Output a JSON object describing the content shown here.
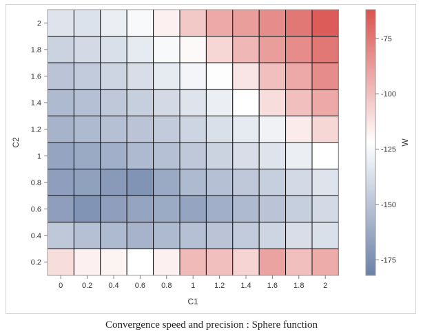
{
  "chart_data": {
    "type": "heatmap",
    "title": "",
    "xlabel": "C1",
    "ylabel": "C2",
    "x": [
      "0",
      "0.2",
      "0.4",
      "0.6",
      "0.8",
      "1",
      "1.2",
      "1.4",
      "1.6",
      "1.8",
      "2"
    ],
    "y": [
      "2",
      "1.8",
      "1.6",
      "1.4",
      "1.2",
      "1",
      "0.8",
      "0.6",
      "0.4",
      "0.2"
    ],
    "values": [
      [
        -135,
        -136,
        -130,
        -125,
        -117,
        -103,
        -92,
        -88,
        -82,
        -75,
        -65
      ],
      [
        -143,
        -140,
        -137,
        -132,
        -125,
        -120,
        -108,
        -97,
        -88,
        -82,
        -75
      ],
      [
        -150,
        -147,
        -142,
        -138,
        -132,
        -127,
        -123,
        -113,
        -100,
        -92,
        -82
      ],
      [
        -155,
        -152,
        -148,
        -145,
        -140,
        -135,
        -130,
        -122,
        -110,
        -100,
        -92
      ],
      [
        -158,
        -155,
        -152,
        -150,
        -147,
        -142,
        -137,
        -132,
        -128,
        -115,
        -108
      ],
      [
        -165,
        -163,
        -160,
        -155,
        -152,
        -148,
        -143,
        -138,
        -135,
        -130,
        -122
      ],
      [
        -168,
        -167,
        -170,
        -173,
        -163,
        -155,
        -152,
        -148,
        -145,
        -140,
        -135
      ],
      [
        -168,
        -173,
        -168,
        -165,
        -162,
        -165,
        -160,
        -155,
        -150,
        -145,
        -140
      ],
      [
        -148,
        -152,
        -155,
        -158,
        -155,
        -152,
        -150,
        -147,
        -142,
        -138,
        -137
      ],
      [
        -110,
        -117,
        -118,
        -122,
        -117,
        -98,
        -100,
        -107,
        -90,
        -100,
        -93
      ]
    ],
    "colorbar": {
      "label": "W",
      "ticks": [
        -175,
        -150,
        -125,
        -100,
        -75
      ],
      "range": [
        -182,
        -62
      ],
      "colors": {
        "low": "#6b81a8",
        "mid": "#ffffff",
        "high": "#d9534f"
      }
    },
    "caption": "Convergence speed and precision : Sphere function"
  }
}
